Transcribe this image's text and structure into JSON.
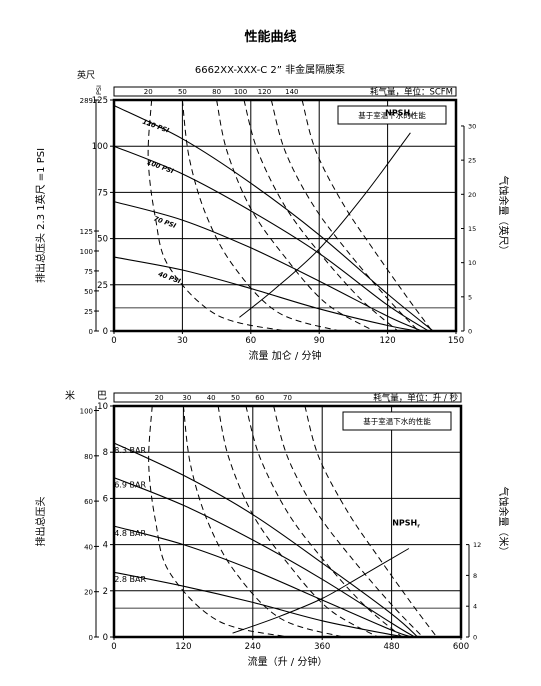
{
  "page_title": "性能曲线",
  "chart_data": [
    {
      "type": "line",
      "title": "6662XX-XXX-C 2” 非金属隔膜泵",
      "xlabel": "流量 加仑 / 分钟",
      "ylabel": "排出总压头 2.3 1英尺 =1 PSI",
      "y2label": "气蚀余量（英尺）",
      "top_axis_label": "耗气量，单位：SCFM",
      "note": "基于室温下水的性能",
      "psi_unit": "PSI",
      "feet_unit": "英尺",
      "npsh_label": "NPSH",
      "npsh_sub": "r",
      "xlim": [
        0,
        150
      ],
      "ylim": [
        0,
        125
      ],
      "x_ticks": [
        0,
        30,
        60,
        90,
        120,
        150
      ],
      "y_ticks": [
        0,
        25,
        50,
        75,
        100,
        125
      ],
      "psi_ticks": [
        {
          "label": "0",
          "value": 0
        },
        {
          "label": "25",
          "value": 10.8
        },
        {
          "label": "50",
          "value": 21.7
        },
        {
          "label": "75",
          "value": 32.5
        },
        {
          "label": "100",
          "value": 43.3
        },
        {
          "label": "125",
          "value": 54.1
        },
        {
          "label": "289",
          "value": 125
        }
      ],
      "npsh_ticks": [
        0,
        5,
        10,
        15,
        20,
        25,
        30
      ],
      "npsh_max": 33.8,
      "top_ticks": [
        20,
        50,
        80,
        100,
        120,
        140
      ],
      "series": [
        {
          "name": "120 PSI",
          "x": [
            0,
            30,
            60,
            90,
            120,
            140
          ],
          "y": [
            122,
            104,
            80,
            52,
            20,
            0
          ]
        },
        {
          "name": "100 PSI",
          "x": [
            0,
            30,
            60,
            90,
            120,
            138
          ],
          "y": [
            100,
            85,
            65,
            42,
            14,
            0
          ]
        },
        {
          "name": "70 PSI",
          "x": [
            0,
            30,
            60,
            90,
            120,
            135
          ],
          "y": [
            70,
            60,
            45,
            27,
            8,
            0
          ]
        },
        {
          "name": "40 PSI",
          "x": [
            0,
            30,
            60,
            90,
            120,
            133
          ],
          "y": [
            40,
            33,
            23,
            12,
            3,
            0
          ]
        }
      ],
      "npsh_curve": {
        "x": [
          55,
          70,
          90,
          110,
          130
        ],
        "y": [
          2,
          6,
          12,
          20,
          29
        ]
      }
    },
    {
      "type": "line",
      "xlabel": "流量（升 / 分钟）",
      "ylabel": "排出总压头",
      "y2label": "气蚀余量（米）",
      "top_axis_label": "耗气量，单位：升 / 秒",
      "note": "基于室温下水的性能",
      "m_unit": "米",
      "bar_unit": "巴",
      "npsh_label": "NPSH",
      "npsh_sub": "r",
      "xlim": [
        0,
        600
      ],
      "ylim": [
        0,
        10
      ],
      "x_ticks": [
        0,
        120,
        240,
        360,
        480,
        600
      ],
      "y_ticks": [
        0,
        2,
        4,
        6,
        8,
        10
      ],
      "m_ticks": [
        0,
        20,
        40,
        60,
        80,
        100
      ],
      "m_max": 102,
      "npsh_ticks": [
        0,
        4,
        8,
        12
      ],
      "npsh_max": 30,
      "top_ticks": [
        20,
        30,
        40,
        50,
        60,
        70
      ],
      "series": [
        {
          "name": "8.3 BAR",
          "x": [
            0,
            120,
            240,
            360,
            480,
            525
          ],
          "y": [
            8.4,
            7.0,
            5.3,
            3.2,
            1.0,
            0
          ]
        },
        {
          "name": "6.9 BAR",
          "x": [
            0,
            120,
            240,
            360,
            480,
            520
          ],
          "y": [
            6.9,
            5.7,
            4.2,
            2.5,
            0.6,
            0
          ]
        },
        {
          "name": "4.8 BAR",
          "x": [
            0,
            120,
            240,
            360,
            480,
            515
          ],
          "y": [
            4.8,
            4.0,
            2.9,
            1.6,
            0.3,
            0
          ]
        },
        {
          "name": "2.8 BAR",
          "x": [
            0,
            120,
            240,
            360,
            480,
            510
          ],
          "y": [
            2.8,
            2.2,
            1.5,
            0.7,
            0.1,
            0
          ]
        }
      ],
      "npsh_curve": {
        "x": [
          205,
          280,
          360,
          430,
          510
        ],
        "y": [
          0.5,
          2.5,
          5,
          8,
          11.5
        ]
      }
    }
  ]
}
